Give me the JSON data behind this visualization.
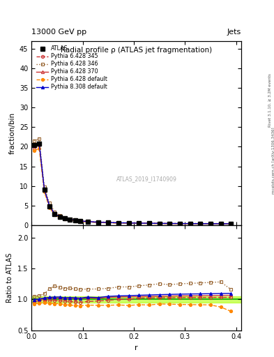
{
  "title_main": "Radial profile ρ (ATLAS jet fragmentation)",
  "header_left": "13000 GeV pp",
  "header_right": "Jets",
  "ylabel_main": "fraction/bin",
  "ylabel_ratio": "Ratio to ATLAS",
  "xlabel": "r",
  "watermark": "ATLAS_2019_I1740909",
  "right_label_top": "Rivet 3.1.10, ≥ 3.2M events",
  "right_label_bot": "mcplots.cern.ch [arXiv:1306.3436]",
  "ylim_main": [
    0,
    47
  ],
  "ylim_ratio": [
    0.5,
    2.2
  ],
  "xlim": [
    0.0,
    0.41
  ],
  "x_data": [
    0.005,
    0.015,
    0.025,
    0.035,
    0.045,
    0.055,
    0.065,
    0.075,
    0.085,
    0.095,
    0.11,
    0.13,
    0.15,
    0.17,
    0.19,
    0.21,
    0.23,
    0.25,
    0.27,
    0.29,
    0.31,
    0.33,
    0.35,
    0.37,
    0.39
  ],
  "atlas_y": [
    20.5,
    20.8,
    9.0,
    4.8,
    2.8,
    2.1,
    1.7,
    1.4,
    1.2,
    1.05,
    0.85,
    0.72,
    0.62,
    0.55,
    0.5,
    0.46,
    0.43,
    0.4,
    0.38,
    0.36,
    0.35,
    0.34,
    0.33,
    0.32,
    0.31
  ],
  "p6_345_y": [
    19.5,
    20.5,
    8.8,
    4.7,
    2.75,
    2.05,
    1.65,
    1.35,
    1.15,
    1.0,
    0.82,
    0.7,
    0.61,
    0.55,
    0.5,
    0.47,
    0.44,
    0.41,
    0.39,
    0.37,
    0.36,
    0.35,
    0.34,
    0.33,
    0.32
  ],
  "p6_346_y": [
    21.5,
    22.0,
    9.8,
    5.6,
    3.4,
    2.5,
    2.0,
    1.65,
    1.4,
    1.22,
    0.99,
    0.84,
    0.73,
    0.66,
    0.6,
    0.56,
    0.53,
    0.5,
    0.47,
    0.45,
    0.44,
    0.43,
    0.42,
    0.41,
    0.36
  ],
  "p6_370_y": [
    20.3,
    20.7,
    9.1,
    4.9,
    2.85,
    2.15,
    1.72,
    1.42,
    1.22,
    1.06,
    0.87,
    0.73,
    0.64,
    0.57,
    0.52,
    0.48,
    0.45,
    0.42,
    0.4,
    0.38,
    0.37,
    0.36,
    0.35,
    0.34,
    0.33
  ],
  "p6_def_y": [
    19.0,
    19.5,
    8.5,
    4.5,
    2.6,
    1.95,
    1.55,
    1.27,
    1.08,
    0.94,
    0.77,
    0.65,
    0.56,
    0.5,
    0.45,
    0.42,
    0.39,
    0.37,
    0.35,
    0.33,
    0.32,
    0.31,
    0.3,
    0.28,
    0.25
  ],
  "p8_def_y": [
    20.4,
    20.9,
    9.2,
    4.95,
    2.9,
    2.18,
    1.74,
    1.44,
    1.23,
    1.07,
    0.88,
    0.74,
    0.65,
    0.58,
    0.53,
    0.49,
    0.46,
    0.43,
    0.41,
    0.39,
    0.38,
    0.37,
    0.36,
    0.35,
    0.34
  ],
  "ratio_p6_345": [
    0.95,
    0.985,
    0.978,
    0.979,
    0.982,
    0.976,
    0.971,
    0.964,
    0.958,
    0.952,
    0.965,
    0.972,
    0.984,
    1.0,
    1.0,
    1.02,
    1.023,
    1.025,
    1.026,
    1.028,
    1.029,
    1.029,
    1.03,
    1.031,
    1.032
  ],
  "ratio_p6_346": [
    1.05,
    1.058,
    1.089,
    1.167,
    1.214,
    1.19,
    1.176,
    1.179,
    1.167,
    1.162,
    1.165,
    1.167,
    1.177,
    1.2,
    1.2,
    1.217,
    1.233,
    1.25,
    1.237,
    1.25,
    1.257,
    1.265,
    1.273,
    1.281,
    1.16
  ],
  "ratio_p6_370": [
    0.99,
    0.995,
    1.011,
    1.021,
    1.018,
    1.024,
    1.012,
    1.014,
    1.017,
    1.01,
    1.024,
    1.014,
    1.032,
    1.036,
    1.04,
    1.043,
    1.047,
    1.05,
    1.053,
    1.056,
    1.057,
    1.059,
    1.061,
    1.063,
    1.065
  ],
  "ratio_p6_def": [
    0.927,
    0.938,
    0.944,
    0.938,
    0.929,
    0.929,
    0.912,
    0.907,
    0.9,
    0.895,
    0.906,
    0.903,
    0.903,
    0.909,
    0.9,
    0.913,
    0.907,
    0.925,
    0.921,
    0.917,
    0.914,
    0.912,
    0.909,
    0.875,
    0.806
  ],
  "ratio_p8_def": [
    0.995,
    1.005,
    1.022,
    1.031,
    1.036,
    1.038,
    1.024,
    1.029,
    1.025,
    1.019,
    1.035,
    1.028,
    1.048,
    1.055,
    1.06,
    1.065,
    1.07,
    1.075,
    1.079,
    1.083,
    1.086,
    1.088,
    1.091,
    1.094,
    1.097
  ],
  "atlas_color": "#000000",
  "p6_345_color": "#cc3333",
  "p6_346_color": "#996633",
  "p6_370_color": "#cc3333",
  "p6_def_color": "#ff8800",
  "p8_def_color": "#0000cc",
  "band_color": "#aaff00",
  "band_alpha": 0.6,
  "green_line": "#00aa00",
  "tick_ytop": [
    0,
    5,
    10,
    15,
    20,
    25,
    30,
    35,
    40,
    45
  ],
  "tick_yratio": [
    0.5,
    1.0,
    1.5,
    2.0
  ],
  "tick_xmain": [
    0.0,
    0.1,
    0.2,
    0.3,
    0.4
  ],
  "tick_xratio": [
    0.0,
    0.1,
    0.2,
    0.3,
    0.4
  ]
}
